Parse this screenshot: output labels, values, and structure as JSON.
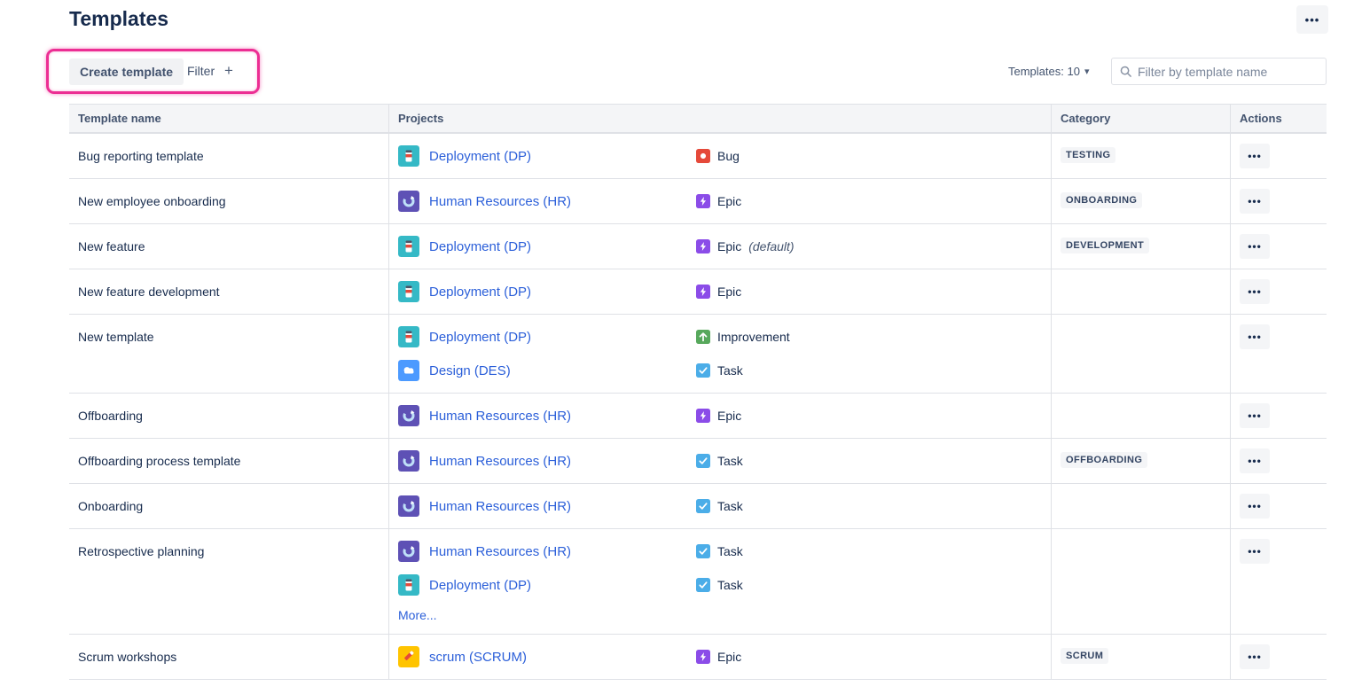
{
  "page": {
    "title": "Templates"
  },
  "toolbar": {
    "create_button": "Create template",
    "filter_label": "Filter",
    "add_icon": "+",
    "overflow_icon": "•••",
    "templates_count": "Templates: 10",
    "chevron_icon": "▾",
    "search_placeholder": "Filter by template name"
  },
  "table": {
    "columns": [
      "Template name",
      "Projects",
      "Category",
      "Actions"
    ],
    "actions_icon": "•••",
    "more_label": "More...",
    "rows": [
      {
        "name": "Bug reporting template",
        "category": "TESTING",
        "entries": [
          {
            "project": "Deployment (DP)",
            "avatar": "deployment",
            "type": "Bug",
            "type_icon": "bug",
            "suffix": ""
          }
        ],
        "has_more": false
      },
      {
        "name": "New employee onboarding",
        "category": "ONBOARDING",
        "entries": [
          {
            "project": "Human Resources (HR)",
            "avatar": "hr",
            "type": "Epic",
            "type_icon": "epic",
            "suffix": ""
          }
        ],
        "has_more": false
      },
      {
        "name": "New feature",
        "category": "DEVELOPMENT",
        "entries": [
          {
            "project": "Deployment (DP)",
            "avatar": "deployment",
            "type": "Epic",
            "type_icon": "epic",
            "suffix": "(default)"
          }
        ],
        "has_more": false
      },
      {
        "name": "New feature development",
        "category": "",
        "entries": [
          {
            "project": "Deployment (DP)",
            "avatar": "deployment",
            "type": "Epic",
            "type_icon": "epic",
            "suffix": ""
          }
        ],
        "has_more": false
      },
      {
        "name": "New template",
        "category": "",
        "entries": [
          {
            "project": "Deployment (DP)",
            "avatar": "deployment",
            "type": "Improvement",
            "type_icon": "improvement",
            "suffix": ""
          },
          {
            "project": "Design (DES)",
            "avatar": "design",
            "type": "Task",
            "type_icon": "task",
            "suffix": ""
          }
        ],
        "has_more": false
      },
      {
        "name": "Offboarding",
        "category": "",
        "entries": [
          {
            "project": "Human Resources (HR)",
            "avatar": "hr",
            "type": "Epic",
            "type_icon": "epic",
            "suffix": ""
          }
        ],
        "has_more": false
      },
      {
        "name": "Offboarding process template",
        "category": "OFFBOARDING",
        "entries": [
          {
            "project": "Human Resources (HR)",
            "avatar": "hr",
            "type": "Task",
            "type_icon": "task",
            "suffix": ""
          }
        ],
        "has_more": false
      },
      {
        "name": "Onboarding",
        "category": "",
        "entries": [
          {
            "project": "Human Resources (HR)",
            "avatar": "hr",
            "type": "Task",
            "type_icon": "task",
            "suffix": ""
          }
        ],
        "has_more": false
      },
      {
        "name": "Retrospective planning",
        "category": "",
        "entries": [
          {
            "project": "Human Resources (HR)",
            "avatar": "hr",
            "type": "Task",
            "type_icon": "task",
            "suffix": ""
          },
          {
            "project": "Deployment (DP)",
            "avatar": "deployment",
            "type": "Task",
            "type_icon": "task",
            "suffix": ""
          }
        ],
        "has_more": true
      },
      {
        "name": "Scrum workshops",
        "category": "SCRUM",
        "entries": [
          {
            "project": "scrum (SCRUM)",
            "avatar": "scrum",
            "type": "Epic",
            "type_icon": "epic",
            "suffix": ""
          }
        ],
        "has_more": false
      }
    ]
  },
  "colors": {
    "annotation_pink": "#EC2E93",
    "link_blue": "#2B5FD9",
    "title_text": "#172B4D",
    "type_bug": "#E5493A",
    "type_epic": "#8B4CE8",
    "type_improvement": "#57A85C",
    "type_task": "#4BADE8",
    "avatar_deployment": "#35B9C6",
    "avatar_hr": "#5E51B5",
    "avatar_design": "#4C9AFF",
    "avatar_scrum": "#FFC400"
  }
}
